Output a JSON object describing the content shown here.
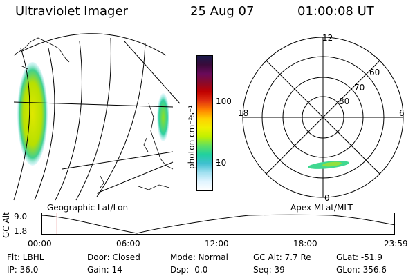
{
  "header": {
    "instrument": "Ultraviolet Imager",
    "date": "25 Aug 07",
    "time": "01:00:08 UT"
  },
  "geo_panel": {
    "label": "Geographic Lat/Lon"
  },
  "colorbar": {
    "unit_label": "photon cm⁻²s⁻¹",
    "ticks": [
      "100",
      "10"
    ],
    "colors": [
      "#1a1a4a",
      "#3a0a3a",
      "#6a0a5a",
      "#8a0a2a",
      "#c00000",
      "#e03010",
      "#ff8000",
      "#ffd000",
      "#f0f000",
      "#c0f000",
      "#60e060",
      "#20d0a0",
      "#40c0d0",
      "#a0e0f0",
      "#e0f4ff",
      "#ffffff"
    ]
  },
  "polar_panel": {
    "label": "Apex MLat/MLT",
    "mlt_labels": {
      "top": "12",
      "right": "6",
      "bottom": "0",
      "left": "18"
    },
    "lat_labels": [
      "60",
      "70",
      "80"
    ]
  },
  "timeline": {
    "axis_label": "GC Alt",
    "y_labels": [
      "9.0",
      "1.8"
    ],
    "x_labels": [
      "00:00",
      "06:00",
      "12:00",
      "18:00",
      "23:59"
    ],
    "current_time_fraction": 0.042
  },
  "info": {
    "filter": "Flt: LBHL",
    "ip": "IP: 36.0",
    "door": "Door: Closed",
    "gain": "Gain: 14",
    "mode": "Mode: Normal",
    "dsp": "Dsp:   -0.0",
    "gc_alt": "GC Alt: 7.7 Re",
    "seq": "Seq: 39",
    "glat": "GLat: -51.9",
    "glon": "GLon: 356.6"
  }
}
